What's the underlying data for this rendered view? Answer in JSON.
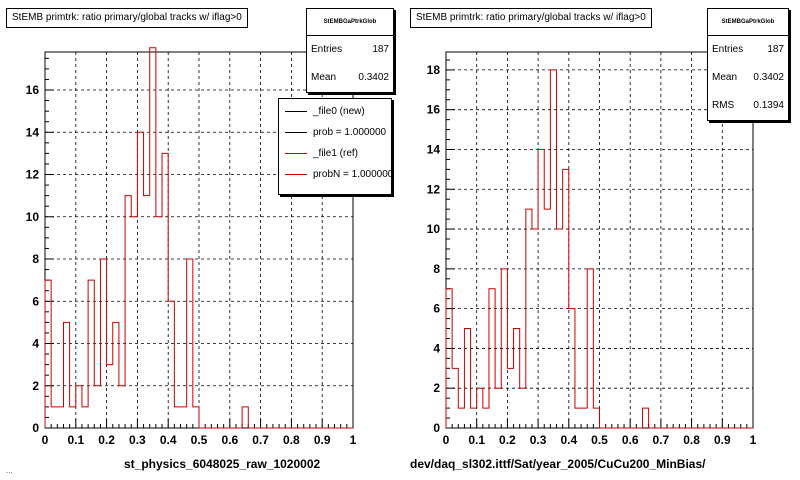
{
  "colors": {
    "background": "#ffffff",
    "axes": "#000000",
    "new_line": "#000000",
    "ref_line": "#cc0000"
  },
  "left_panel": {
    "title": "StEMB primtrk: ratio primary/global tracks w/ iflag>0",
    "stats": {
      "name": "StEMBGaPtrkGlob",
      "rows": [
        {
          "label": "Entries",
          "value": "187"
        },
        {
          "label": "Mean",
          "value": "0.3402"
        }
      ]
    },
    "legend": [
      {
        "label": "_file0 (new)",
        "color": "#000000"
      },
      {
        "label": "prob = 1.000000",
        "color": "#000000"
      },
      {
        "label": "_file1 (ref)",
        "color": "#cc0000"
      },
      {
        "label": "probN = 1.000000",
        "color": "#cc0000"
      }
    ],
    "xlabel": "st_physics_6048025_raw_1020002"
  },
  "right_panel": {
    "title": "StEMB primtrk: ratio primary/global tracks w/ iflag>0",
    "stats": {
      "name": "StEMBGaPtrkGlob",
      "rows": [
        {
          "label": "Entries",
          "value": "187"
        },
        {
          "label": "Mean",
          "value": "0.3402"
        },
        {
          "label": "RMS",
          "value": "0.1394"
        }
      ]
    },
    "xlabel": "dev/daq_sl302.ittf/Sat/year_2005/CuCu200_MinBias/"
  },
  "footer": "...",
  "chart_data": [
    {
      "type": "histogram",
      "title": "StEMB primtrk: ratio primary/global tracks w/ iflag>0",
      "xlabel": "st_physics_6048025_raw_1020002",
      "xlim": [
        0,
        1
      ],
      "ylim": [
        0,
        17.8
      ],
      "x_ticks": [
        "0",
        "0.1",
        "0.2",
        "0.3",
        "0.4",
        "0.5",
        "0.6",
        "0.7",
        "0.8",
        "0.9",
        "1"
      ],
      "y_ticks": [
        "0",
        "2",
        "4",
        "6",
        "8",
        "10",
        "12",
        "14",
        "16"
      ],
      "grid": true,
      "bin_width": 0.02,
      "series": [
        {
          "name": "_file1 (ref)",
          "color": "#cc0000",
          "values": [
            7,
            1,
            1,
            5,
            1,
            2,
            1,
            7,
            2,
            8,
            3,
            5,
            2,
            11,
            10,
            14,
            11,
            18,
            10,
            13,
            6,
            1,
            1,
            8,
            1,
            0,
            0,
            0,
            0,
            0,
            0,
            0,
            1,
            0,
            0,
            0,
            0,
            0,
            0,
            0,
            0,
            0,
            0,
            0,
            0,
            0,
            0,
            0,
            0,
            0
          ]
        }
      ]
    },
    {
      "type": "histogram",
      "title": "StEMB primtrk: ratio primary/global tracks w/ iflag>0",
      "xlabel": "dev/daq_sl302.ittf/Sat/year_2005/CuCu200_MinBias/",
      "xlim": [
        0,
        1
      ],
      "ylim": [
        0,
        18.9
      ],
      "x_ticks": [
        "0",
        "0.1",
        "0.2",
        "0.3",
        "0.4",
        "0.5",
        "0.6",
        "0.7",
        "0.8",
        "0.9",
        "1"
      ],
      "y_ticks": [
        "0",
        "2",
        "4",
        "6",
        "8",
        "10",
        "12",
        "14",
        "16",
        "18"
      ],
      "grid": true,
      "bin_width": 0.02,
      "series": [
        {
          "name": "_file1 (ref)",
          "color": "#cc0000",
          "values": [
            7,
            3,
            1,
            5,
            1,
            2,
            1,
            7,
            2,
            8,
            3,
            5,
            2,
            11,
            10,
            14,
            11,
            18,
            10,
            13,
            6,
            1,
            1,
            8,
            1,
            0,
            0,
            0,
            0,
            0,
            0,
            0,
            1,
            0,
            0,
            0,
            0,
            0,
            0,
            0,
            0,
            0,
            0,
            0,
            0,
            0,
            0,
            0,
            0,
            0
          ]
        }
      ]
    }
  ]
}
